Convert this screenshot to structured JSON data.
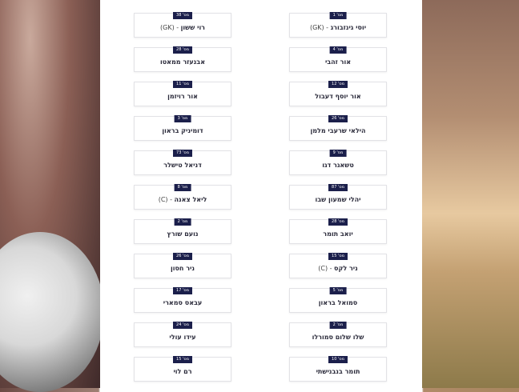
{
  "badge_prefix": "מס'",
  "colors": {
    "badge_bg": "#1b1f4b",
    "card_border": "#e2e2e6"
  },
  "right_column": [
    {
      "number": "1",
      "name": "יוסי גינזבורג",
      "suffix": " - (GK)"
    },
    {
      "number": "4",
      "name": "אור זהבי",
      "suffix": ""
    },
    {
      "number": "12",
      "name": "אור יוסף דעבול",
      "suffix": ""
    },
    {
      "number": "26",
      "name": "הילאי שרעבי מלמן",
      "suffix": ""
    },
    {
      "number": "9",
      "name": "טשאגר דגו",
      "suffix": ""
    },
    {
      "number": "87",
      "name": "יהלי שמעון שבו",
      "suffix": ""
    },
    {
      "number": "28",
      "name": "יואב תומר",
      "suffix": ""
    },
    {
      "number": "15",
      "name": "ניר לקס",
      "suffix": " - (C)"
    },
    {
      "number": "5",
      "name": "סמואל בראון",
      "suffix": ""
    },
    {
      "number": "2",
      "name": "שלו שלום סמורלו",
      "suffix": ""
    },
    {
      "number": "10",
      "name": "תומר בנבנישתי",
      "suffix": ""
    }
  ],
  "left_column": [
    {
      "number": "38",
      "name": "רוי ששון",
      "suffix": " - (GK)"
    },
    {
      "number": "28",
      "name": "אבנעזר ממאטו",
      "suffix": ""
    },
    {
      "number": "11",
      "name": "אור רויזמן",
      "suffix": ""
    },
    {
      "number": "3",
      "name": "דומיניק בראון",
      "suffix": ""
    },
    {
      "number": "73",
      "name": "דניאל טישלר",
      "suffix": ""
    },
    {
      "number": "8",
      "name": "ליאל צאנה",
      "suffix": " - (C)"
    },
    {
      "number": "2",
      "name": "נועם שורץ",
      "suffix": ""
    },
    {
      "number": "26",
      "name": "ניר חסון",
      "suffix": ""
    },
    {
      "number": "17",
      "name": "עבאס סמארי",
      "suffix": ""
    },
    {
      "number": "24",
      "name": "עידו עולי",
      "suffix": ""
    },
    {
      "number": "15",
      "name": "רם לוי",
      "suffix": ""
    }
  ]
}
